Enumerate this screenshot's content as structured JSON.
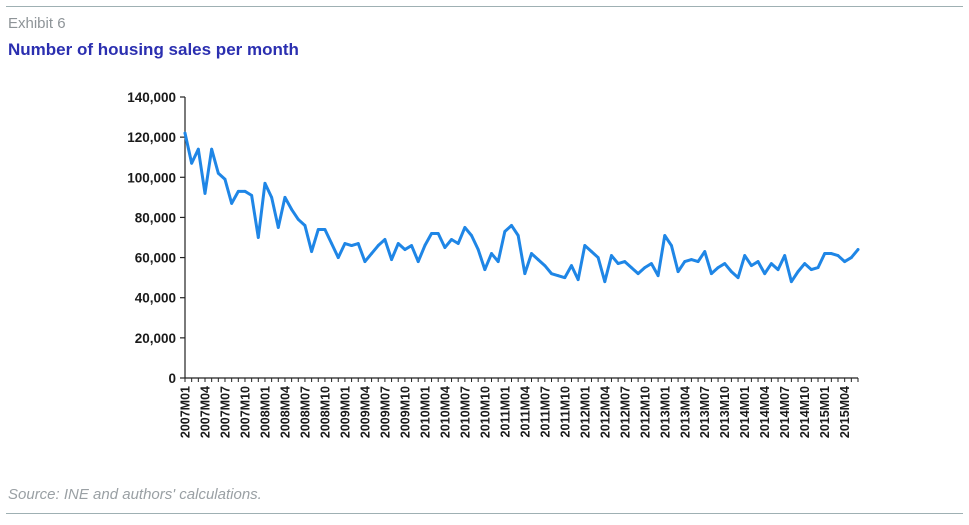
{
  "header": {
    "exhibit": "Exhibit 6",
    "title": "Number of housing sales per month"
  },
  "footer": {
    "source": "Source: INE and authors' calculations."
  },
  "colors": {
    "line": "#1f86e6",
    "title": "#2b2fb0",
    "axis": "#222222"
  },
  "chart_data": {
    "type": "line",
    "title": "Number of housing sales per month",
    "xlabel": "",
    "ylabel": "",
    "ylim": [
      0,
      140000
    ],
    "yticks": [
      "0",
      "20,000",
      "40,000",
      "60,000",
      "80,000",
      "100,000",
      "120,000",
      "140,000"
    ],
    "ytick_values": [
      0,
      20000,
      40000,
      60000,
      80000,
      100000,
      120000,
      140000
    ],
    "xtick_labels": [
      "2007M01",
      "2007M04",
      "2007M07",
      "2007M10",
      "2008M01",
      "2008M04",
      "2008M07",
      "2008M10",
      "2009M01",
      "2009M04",
      "2009M07",
      "2009M10",
      "2010M01",
      "2010M04",
      "2010M07",
      "2010M10",
      "2011M01",
      "2011M04",
      "2011M07",
      "2011M10",
      "2012M01",
      "2012M04",
      "2012M07",
      "2012M10",
      "2013M01",
      "2013M04",
      "2013M07",
      "2013M10",
      "2014M01",
      "2014M04",
      "2014M07",
      "2014M10",
      "2015M01",
      "2015M04"
    ],
    "grid": false,
    "legend": "none",
    "x_start": "2007M01",
    "x_end": "2015M07",
    "series": [
      {
        "values": [
          122000,
          107000,
          114000,
          92000,
          114000,
          102000,
          99000,
          87000,
          93000,
          93000,
          91000,
          70000,
          97000,
          90000,
          75000,
          90000,
          84000,
          79000,
          76000,
          63000,
          74000,
          74000,
          67000,
          60000,
          67000,
          66000,
          67000,
          58000,
          62000,
          66000,
          69000,
          59000,
          67000,
          64000,
          66000,
          58000,
          66000,
          72000,
          72000,
          65000,
          69000,
          67000,
          75000,
          71000,
          64000,
          54000,
          62000,
          58000,
          73000,
          76000,
          71000,
          52000,
          62000,
          59000,
          56000,
          52000,
          51000,
          50000,
          56000,
          49000,
          66000,
          63000,
          60000,
          48000,
          61000,
          57000,
          58000,
          55000,
          52000,
          55000,
          57000,
          51000,
          71000,
          66000,
          53000,
          58000,
          59000,
          58000,
          63000,
          52000,
          55000,
          57000,
          53000,
          50000,
          61000,
          56000,
          58000,
          52000,
          57000,
          54000,
          61000,
          48000,
          53000,
          57000,
          54000,
          55000,
          62000,
          62000,
          61000,
          58000,
          60000,
          64000
        ]
      }
    ]
  }
}
